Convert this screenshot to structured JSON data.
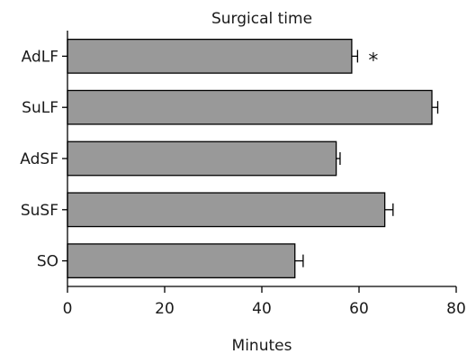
{
  "chart_data": {
    "type": "bar",
    "orientation": "horizontal",
    "title": "Surgical time",
    "xlabel": "Minutes",
    "ylabel": "",
    "xlim": [
      0,
      80
    ],
    "xticks": [
      0,
      20,
      40,
      60,
      80
    ],
    "xtick_labels": [
      "0",
      "20",
      "40",
      "60",
      "80"
    ],
    "categories": [
      "AdLF",
      "SuLF",
      "AdSF",
      "SuSF",
      "SO"
    ],
    "values": [
      58.5,
      75,
      55.3,
      65.3,
      46.8
    ],
    "errors": [
      1.2,
      1.2,
      0.8,
      1.7,
      1.7
    ],
    "annotations": [
      {
        "category": "AdLF",
        "text": "*"
      }
    ],
    "grid": false,
    "legend": "none",
    "colors": {
      "bar": "#999999",
      "edge": "#000000"
    }
  }
}
